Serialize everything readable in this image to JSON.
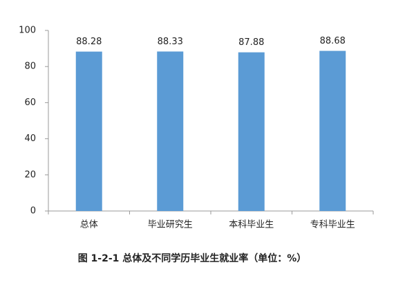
{
  "chart_data": {
    "type": "bar",
    "title": "图 1-2-1  总体及不同学历毕业生就业率（单位：%）",
    "categories": [
      "总体",
      "毕业研究生",
      "本科毕业生",
      "专科毕业生"
    ],
    "values": [
      88.28,
      88.33,
      87.88,
      88.68
    ],
    "color": "#5b9bd5",
    "ylim": [
      0,
      100
    ],
    "yticks": [
      0,
      20,
      40,
      60,
      80,
      100
    ],
    "grid": false
  }
}
